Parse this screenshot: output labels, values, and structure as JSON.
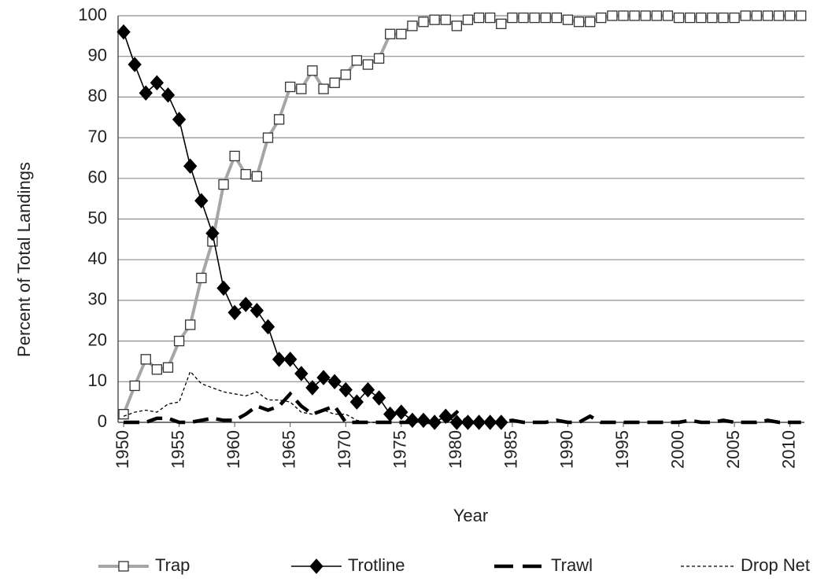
{
  "chart_data": {
    "type": "line",
    "xlabel": "Year",
    "ylabel": "Percent of Total Landings",
    "x": [
      1950,
      1951,
      1952,
      1953,
      1954,
      1955,
      1956,
      1957,
      1958,
      1959,
      1960,
      1961,
      1962,
      1963,
      1964,
      1965,
      1966,
      1967,
      1968,
      1969,
      1970,
      1971,
      1972,
      1973,
      1974,
      1975,
      1976,
      1977,
      1978,
      1979,
      1980,
      1981,
      1982,
      1983,
      1984,
      1985,
      1986,
      1987,
      1988,
      1989,
      1990,
      1991,
      1992,
      1993,
      1994,
      1995,
      1996,
      1997,
      1998,
      1999,
      2000,
      2001,
      2002,
      2003,
      2004,
      2005,
      2006,
      2007,
      2008,
      2009,
      2010,
      2011
    ],
    "series": [
      {
        "name": "Trap",
        "color": "#a6a6a6",
        "marker": "square",
        "dash": "solid",
        "values": [
          2,
          9,
          15.5,
          13,
          13.5,
          20,
          24,
          35.5,
          44.5,
          58.5,
          65.5,
          61,
          60.5,
          70,
          74.5,
          82.5,
          82,
          86.5,
          82,
          83.5,
          85.5,
          89,
          88,
          89.5,
          95.5,
          95.5,
          97.5,
          98.5,
          99,
          99,
          97.5,
          99,
          99.5,
          99.5,
          98,
          99.5,
          99.5,
          99.5,
          99.5,
          99.5,
          99,
          98.5,
          98.5,
          99.5,
          100,
          100,
          100,
          100,
          100,
          100,
          99.5,
          99.5,
          99.5,
          99.5,
          99.5,
          99.5,
          100,
          100,
          100,
          100,
          100,
          100
        ]
      },
      {
        "name": "Trotline",
        "color": "#000000",
        "marker": "diamond",
        "dash": "solid",
        "values": [
          96,
          88,
          81,
          83.5,
          80.5,
          74.5,
          63,
          54.5,
          46.5,
          33,
          27,
          29,
          27.5,
          23.5,
          15.5,
          15.5,
          12,
          8.5,
          11,
          10,
          8,
          5,
          8,
          6,
          2,
          2.5,
          0.5,
          0.5,
          0,
          1.5,
          0,
          0,
          0,
          0,
          0,
          null,
          null,
          null,
          null,
          null,
          null,
          null,
          null,
          null,
          null,
          null,
          null,
          null,
          null,
          null,
          null,
          null,
          null,
          null,
          null,
          null,
          null,
          null,
          null,
          null,
          null,
          null
        ]
      },
      {
        "name": "Trawl",
        "color": "#000000",
        "marker": null,
        "dash": "long",
        "values": [
          0,
          0,
          0,
          1,
          1,
          0,
          0,
          0.5,
          1,
          0.5,
          0.5,
          2,
          4,
          3,
          4,
          7,
          4,
          2,
          3,
          4,
          0,
          0,
          0,
          0,
          0,
          0,
          0,
          0,
          0,
          0,
          2.5,
          0,
          0,
          0,
          0,
          0.5,
          0,
          0,
          0,
          0.5,
          0,
          0,
          1.5,
          0,
          0,
          0,
          0,
          0,
          0,
          0,
          0,
          0.5,
          0,
          0,
          0.5,
          0,
          0,
          0,
          0.5,
          0,
          0,
          0
        ]
      },
      {
        "name": "Drop Net",
        "color": "#000000",
        "marker": null,
        "dash": "short",
        "values": [
          1.5,
          2.5,
          3,
          2.5,
          4.5,
          5,
          12.5,
          9.5,
          8.5,
          7.5,
          7,
          6.5,
          7.5,
          5.5,
          5.5,
          5,
          2.5,
          2,
          3,
          2,
          2,
          0.5,
          0,
          0,
          null,
          null,
          null,
          null,
          null,
          null,
          null,
          null,
          null,
          null,
          null,
          null,
          null,
          null,
          null,
          null,
          null,
          null,
          null,
          null,
          null,
          null,
          null,
          null,
          null,
          null,
          null,
          null,
          null,
          null,
          null,
          null,
          null,
          null,
          null,
          null,
          null,
          null
        ]
      }
    ],
    "xlim": [
      1949.5,
      2011.3
    ],
    "xticks": [
      1950,
      1955,
      1960,
      1965,
      1970,
      1975,
      1980,
      1985,
      1990,
      1995,
      2000,
      2005,
      2010
    ],
    "ylim": [
      0,
      100
    ],
    "yticks": [
      0,
      10,
      20,
      30,
      40,
      50,
      60,
      70,
      80,
      90,
      100
    ],
    "grid": true,
    "legend": "bottom"
  }
}
